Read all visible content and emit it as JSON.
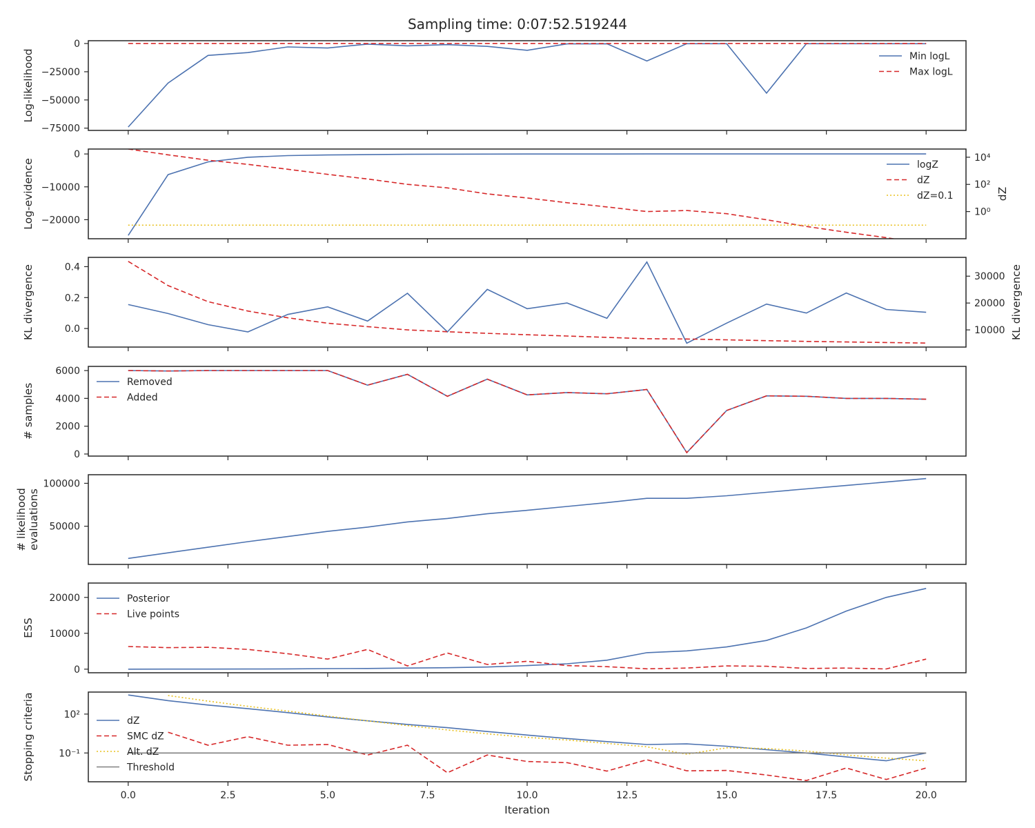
{
  "figure": {
    "title": "Sampling time: 0:07:52.519244",
    "xlabel": "Iteration",
    "xlim": [
      -1,
      21
    ],
    "xticks": [
      0.0,
      2.5,
      5.0,
      7.5,
      10.0,
      12.5,
      15.0,
      17.5,
      20.0
    ],
    "xtick_labels": [
      "0.0",
      "2.5",
      "5.0",
      "7.5",
      "10.0",
      "12.5",
      "15.0",
      "17.5",
      "20.0"
    ]
  },
  "colors": {
    "blue": "#4c72b0",
    "red": "#d62728",
    "gold": "#e8c01e",
    "gray": "#808080"
  },
  "chart_data": [
    {
      "type": "line",
      "ylabel": "Log-likelihood",
      "ylim": [
        -77000,
        2500
      ],
      "yticks": [
        0,
        -25000,
        -50000,
        -75000
      ],
      "ytick_labels": [
        "0",
        "−25000",
        "−50000",
        "−75000"
      ],
      "legend": "top-right",
      "x": [
        0,
        1,
        2,
        3,
        4,
        5,
        6,
        7,
        8,
        9,
        10,
        11,
        12,
        13,
        14,
        15,
        16,
        17,
        18,
        19,
        20
      ],
      "series": [
        {
          "name": "Min logL",
          "color": "blue",
          "style": "solid",
          "values": [
            -74000,
            -35000,
            -10500,
            -8000,
            -3000,
            -4000,
            -500,
            -2000,
            -1000,
            -2500,
            -6000,
            -300,
            -200,
            -15500,
            -100,
            -100,
            -44000,
            -100,
            -100,
            -100,
            -100
          ]
        },
        {
          "name": "Max logL",
          "color": "red",
          "style": "dashed",
          "values": [
            0,
            0,
            0,
            0,
            0,
            0,
            0,
            0,
            0,
            0,
            0,
            0,
            0,
            0,
            0,
            0,
            0,
            0,
            0,
            0,
            0
          ]
        }
      ]
    },
    {
      "type": "line",
      "ylabel": "Log-evidence",
      "ylim": [
        -25800,
        1500
      ],
      "yticks": [
        0,
        -10000,
        -20000
      ],
      "ytick_labels": [
        "0",
        "−10000",
        "−20000"
      ],
      "y2label": "dZ",
      "y2scale": "log",
      "y2lim": [
        0.01,
        40000
      ],
      "y2ticks": [
        10000,
        100,
        1
      ],
      "y2tick_labels": [
        "10⁴",
        "10²",
        "10⁰"
      ],
      "legend": "top-right",
      "x": [
        0,
        1,
        2,
        3,
        4,
        5,
        6,
        7,
        8,
        9,
        10,
        11,
        12,
        13,
        14,
        15,
        16,
        17,
        18,
        19,
        20
      ],
      "series": [
        {
          "name": "logZ",
          "color": "blue",
          "style": "solid",
          "axis": "left",
          "values": [
            -24800,
            -6300,
            -2400,
            -1000,
            -500,
            -300,
            -200,
            -100,
            -60,
            -40,
            -20,
            -10,
            -5,
            0,
            0,
            0,
            0,
            0,
            0,
            0,
            0
          ]
        },
        {
          "name": "dZ",
          "color": "red",
          "style": "dashed",
          "axis": "right",
          "values": [
            40000,
            15000,
            6000,
            3000,
            1300,
            550,
            250,
            100,
            55,
            20,
            10,
            4.5,
            2.2,
            1.0,
            1.2,
            0.7,
            0.25,
            0.08,
            0.03,
            0.012,
            0.004
          ]
        },
        {
          "name": "dZ=0.1",
          "color": "gold",
          "style": "dotted",
          "axis": "right",
          "values": [
            0.1,
            0.1,
            0.1,
            0.1,
            0.1,
            0.1,
            0.1,
            0.1,
            0.1,
            0.1,
            0.1,
            0.1,
            0.1,
            0.1,
            0.1,
            0.1,
            0.1,
            0.1,
            0.1,
            0.1,
            0.1
          ]
        }
      ]
    },
    {
      "type": "line",
      "ylabel": "KL divergence",
      "ylim": [
        -0.12,
        0.46
      ],
      "yticks": [
        0.4,
        0.2,
        0.0
      ],
      "ytick_labels": [
        "0.4",
        "0.2",
        "0.0"
      ],
      "y2label": "KL divergence",
      "y2lim": [
        3600,
        37000
      ],
      "y2ticks": [
        30000,
        20000,
        10000
      ],
      "y2tick_labels": [
        "30000",
        "20000",
        "10000"
      ],
      "x": [
        0,
        1,
        2,
        3,
        4,
        5,
        6,
        7,
        8,
        9,
        10,
        11,
        12,
        13,
        14,
        15,
        16,
        17,
        18,
        19,
        20
      ],
      "series": [
        {
          "color": "blue",
          "style": "solid",
          "axis": "left",
          "values": [
            0.155,
            0.097,
            0.025,
            -0.022,
            0.091,
            0.14,
            0.048,
            0.228,
            -0.022,
            0.253,
            0.128,
            0.165,
            0.066,
            0.43,
            -0.095,
            0.035,
            0.158,
            0.1,
            0.23,
            0.123,
            0.105
          ]
        },
        {
          "color": "red",
          "style": "dashed",
          "axis": "right",
          "values": [
            35500,
            26500,
            20500,
            17000,
            14500,
            12500,
            11200,
            10000,
            9300,
            8700,
            8200,
            7700,
            7200,
            6700,
            6600,
            6300,
            6000,
            5700,
            5500,
            5300,
            5100
          ]
        }
      ]
    },
    {
      "type": "line",
      "ylabel": "# samples",
      "ylim": [
        -150,
        6300
      ],
      "yticks": [
        6000,
        4000,
        2000,
        0
      ],
      "ytick_labels": [
        "6000",
        "4000",
        "2000",
        "0"
      ],
      "legend": "top-left",
      "x": [
        0,
        1,
        2,
        3,
        4,
        5,
        6,
        7,
        8,
        9,
        10,
        11,
        12,
        13,
        14,
        15,
        16,
        17,
        18,
        19,
        20
      ],
      "series": [
        {
          "name": "Removed",
          "color": "blue",
          "style": "solid",
          "values": [
            6000,
            5970,
            6000,
            6000,
            6000,
            6000,
            4950,
            5730,
            4150,
            5380,
            4250,
            4420,
            4330,
            4640,
            100,
            3130,
            4180,
            4150,
            4000,
            4000,
            3940
          ]
        },
        {
          "name": "Added",
          "color": "red",
          "style": "dashed",
          "values": [
            6000,
            5970,
            6000,
            6000,
            6000,
            6000,
            4950,
            5730,
            4150,
            5380,
            4250,
            4420,
            4330,
            4640,
            100,
            3130,
            4180,
            4150,
            4000,
            4000,
            3940
          ]
        }
      ]
    },
    {
      "type": "line",
      "ylabel": "# likelihood evaluations",
      "ylabel_lines": [
        "# likelihood",
        "evaluations"
      ],
      "ylim": [
        5500,
        110000
      ],
      "yticks": [
        100000,
        50000
      ],
      "ytick_labels": [
        "100000",
        "50000"
      ],
      "x": [
        0,
        1,
        2,
        3,
        4,
        5,
        6,
        7,
        8,
        9,
        10,
        11,
        12,
        13,
        14,
        15,
        16,
        17,
        18,
        19,
        20
      ],
      "series": [
        {
          "color": "blue",
          "style": "solid",
          "values": [
            12500,
            19000,
            25500,
            32000,
            38000,
            44000,
            49000,
            55000,
            59000,
            64500,
            68500,
            73000,
            77500,
            82500,
            82500,
            85500,
            89500,
            93500,
            97500,
            101500,
            105500
          ]
        }
      ]
    },
    {
      "type": "line",
      "ylabel": "ESS",
      "ylim": [
        -1000,
        24000
      ],
      "yticks": [
        20000,
        10000,
        0
      ],
      "ytick_labels": [
        "20000",
        "10000",
        "0"
      ],
      "legend": "top-left",
      "x": [
        0,
        1,
        2,
        3,
        4,
        5,
        6,
        7,
        8,
        9,
        10,
        11,
        12,
        13,
        14,
        15,
        16,
        17,
        18,
        19,
        20
      ],
      "series": [
        {
          "name": "Posterior",
          "color": "blue",
          "style": "solid",
          "values": [
            0,
            10,
            20,
            40,
            80,
            150,
            200,
            300,
            400,
            600,
            1000,
            1500,
            2500,
            4600,
            5100,
            6200,
            8000,
            11500,
            16200,
            20000,
            22500
          ]
        },
        {
          "name": "Live points",
          "color": "red",
          "style": "dashed",
          "values": [
            6300,
            6000,
            6100,
            5500,
            4300,
            2800,
            5500,
            900,
            4500,
            1300,
            2200,
            1000,
            700,
            100,
            300,
            900,
            800,
            200,
            300,
            50,
            2800
          ]
        }
      ]
    },
    {
      "type": "line",
      "ylabel": "Stopping criteria",
      "yscale": "log",
      "ylim": [
        0.0006,
        5000
      ],
      "yticks": [
        100,
        0.1
      ],
      "ytick_labels": [
        "10²",
        "10⁻¹"
      ],
      "legend": "middle-left",
      "x": [
        0,
        1,
        2,
        3,
        4,
        5,
        6,
        7,
        8,
        9,
        10,
        11,
        12,
        13,
        14,
        15,
        16,
        17,
        18,
        19,
        20
      ],
      "series": [
        {
          "name": "dZ",
          "color": "blue",
          "style": "solid",
          "values": [
            3000,
            1100,
            500,
            260,
            130,
            60,
            30,
            16,
            9,
            4.5,
            2.4,
            1.3,
            0.75,
            0.45,
            0.5,
            0.33,
            0.18,
            0.1,
            0.05,
            0.025,
            0.1
          ]
        },
        {
          "name": "SMC dZ",
          "color": "red",
          "style": "dashed",
          "values": [
            null,
            4,
            0.4,
            1.8,
            0.4,
            0.45,
            0.07,
            0.4,
            0.003,
            0.07,
            0.022,
            0.018,
            0.004,
            0.03,
            0.0042,
            0.0045,
            0.002,
            0.00075,
            0.007,
            0.0009,
            0.007
          ]
        },
        {
          "name": "Alt. dZ",
          "color": "gold",
          "style": "dotted",
          "values": [
            null,
            2700,
            1000,
            400,
            170,
            70,
            30,
            13,
            6,
            3,
            1.6,
            1,
            0.55,
            0.3,
            0.08,
            0.25,
            0.22,
            0.14,
            0.07,
            0.04,
            0.025
          ]
        },
        {
          "name": "Threshold",
          "color": "gray",
          "style": "solid",
          "values": [
            0.1,
            0.1,
            0.1,
            0.1,
            0.1,
            0.1,
            0.1,
            0.1,
            0.1,
            0.1,
            0.1,
            0.1,
            0.1,
            0.1,
            0.1,
            0.1,
            0.1,
            0.1,
            0.1,
            0.1,
            0.1
          ]
        }
      ]
    }
  ]
}
